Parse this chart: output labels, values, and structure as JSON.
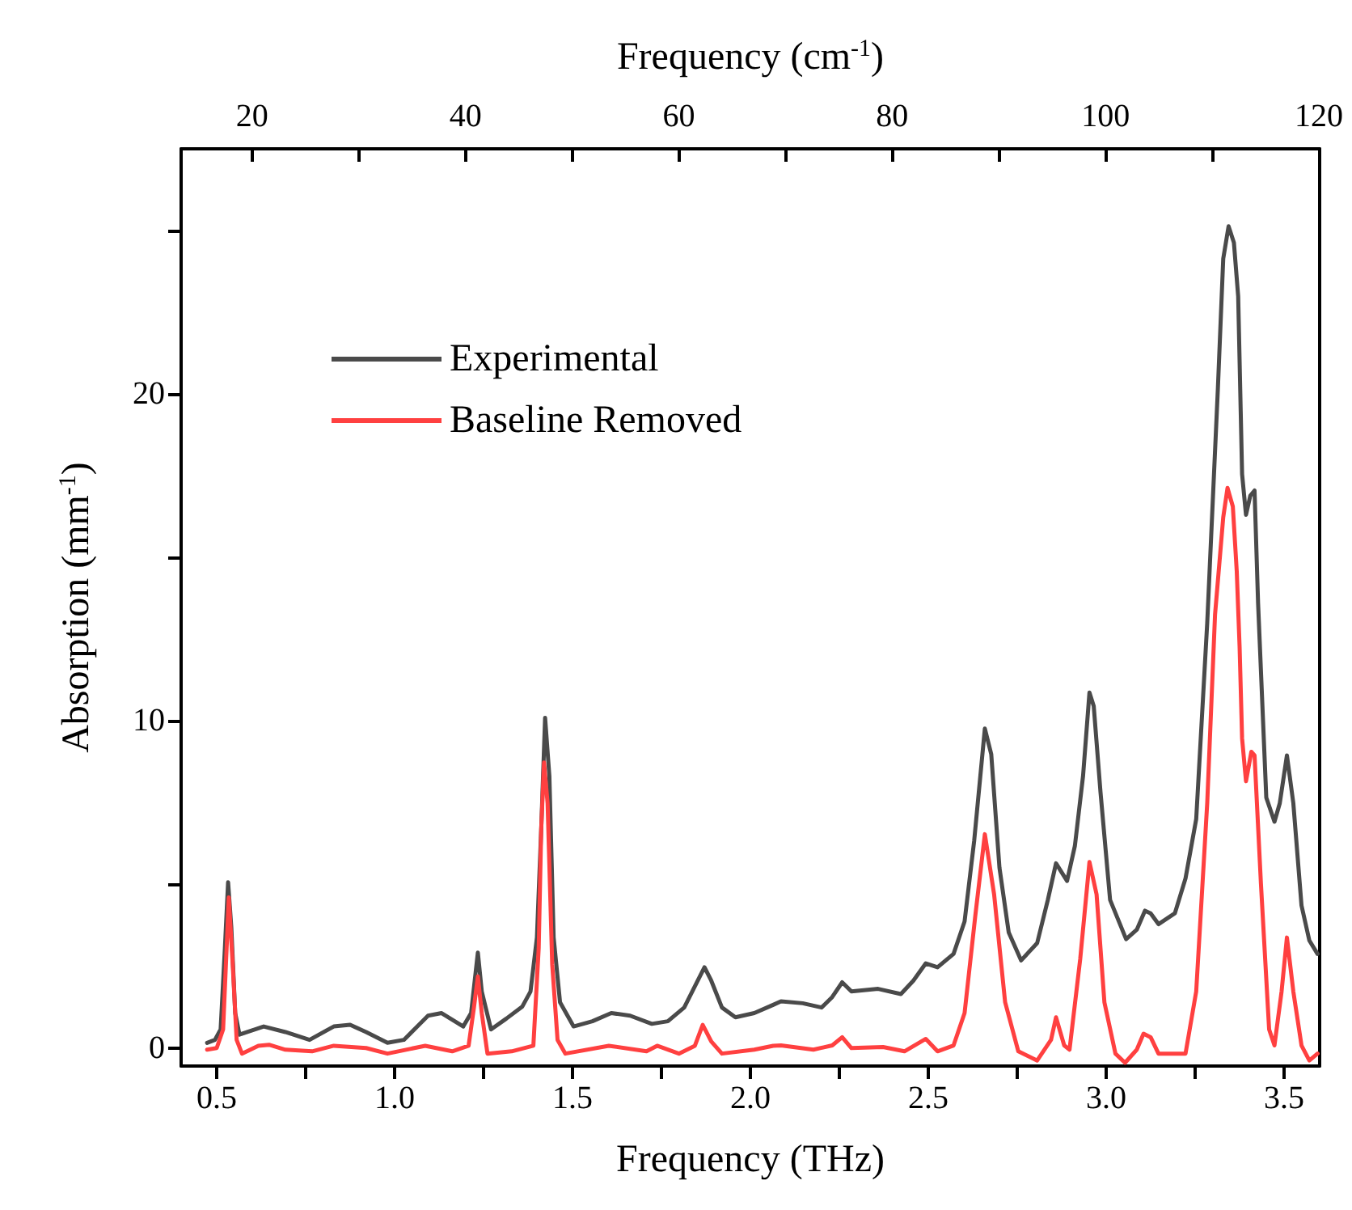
{
  "chart_data": {
    "type": "line",
    "xlabel": "Frequency (THz)",
    "x2label": "Frequency (cm$^{-1}$)",
    "ylabel": "Absorption (mm$^{-1}$)",
    "xlim": [
      0.4,
      3.6
    ],
    "xticks": [
      0.5,
      {
        "value": 0.75,
        "label": null
      },
      {
        "value": 1,
        "label": "1.0"
      },
      {
        "value": 1.25,
        "label": null
      },
      1.5,
      {
        "value": 1.75,
        "label": null
      },
      {
        "value": 2,
        "label": "2.0"
      },
      {
        "value": 2.25,
        "label": null
      },
      2.5,
      {
        "value": 2.75,
        "label": null
      },
      {
        "value": 3,
        "label": "3.0"
      },
      {
        "value": 3.25,
        "label": null
      },
      3.5
    ],
    "x2lim": [
      13.34,
      120.08
    ],
    "x2ticks": [
      20,
      {
        "value": 30,
        "label": null
      },
      40,
      {
        "value": 50,
        "label": null
      },
      60,
      {
        "value": 70,
        "label": null
      },
      80,
      {
        "value": 90,
        "label": null
      },
      100,
      {
        "value": 110,
        "label": null
      },
      120
    ],
    "ylim": [
      -0.55,
      27.5
    ],
    "yticks": [
      0,
      {
        "value": 5,
        "label": null
      },
      10,
      {
        "value": 15,
        "label": null
      },
      20,
      {
        "value": 25,
        "label": null
      }
    ],
    "grid": false,
    "legend": "top left",
    "series": [
      {
        "name": "Experimental",
        "color": "#4a4a4a",
        "x": [
          0.473,
          0.495,
          0.511,
          0.523,
          0.532,
          0.541,
          0.552,
          0.564,
          0.586,
          0.632,
          0.693,
          0.761,
          0.829,
          0.875,
          0.92,
          0.98,
          1.026,
          1.094,
          1.132,
          1.193,
          1.215,
          1.234,
          1.245,
          1.271,
          1.314,
          1.359,
          1.382,
          1.4,
          1.412,
          1.423,
          1.435,
          1.447,
          1.465,
          1.503,
          1.556,
          1.609,
          1.662,
          1.723,
          1.768,
          1.814,
          1.852,
          1.871,
          1.89,
          1.92,
          1.958,
          2.011,
          2.064,
          2.086,
          2.147,
          2.2,
          2.23,
          2.258,
          2.284,
          2.359,
          2.423,
          2.458,
          2.493,
          2.526,
          2.571,
          2.602,
          2.629,
          2.659,
          2.677,
          2.7,
          2.726,
          2.761,
          2.806,
          2.836,
          2.859,
          2.89,
          2.912,
          2.935,
          2.953,
          2.965,
          2.984,
          3.011,
          3.056,
          3.086,
          3.109,
          3.125,
          3.147,
          3.193,
          3.223,
          3.253,
          3.284,
          3.314,
          3.329,
          3.344,
          3.359,
          3.371,
          3.382,
          3.393,
          3.405,
          3.417,
          3.427,
          3.45,
          3.473,
          3.488,
          3.508,
          3.526,
          3.549,
          3.571,
          3.594
        ],
        "values": [
          0.16,
          0.25,
          0.57,
          3.05,
          5.07,
          3.7,
          1.07,
          0.41,
          0.49,
          0.66,
          0.49,
          0.25,
          0.66,
          0.71,
          0.49,
          0.16,
          0.25,
          0.99,
          1.07,
          0.66,
          1.07,
          2.92,
          1.73,
          0.57,
          0.9,
          1.27,
          1.73,
          3.38,
          6.67,
          10.1,
          8.32,
          3.38,
          1.4,
          0.66,
          0.82,
          1.07,
          0.99,
          0.74,
          0.82,
          1.24,
          2.06,
          2.47,
          2.06,
          1.24,
          0.94,
          1.07,
          1.32,
          1.43,
          1.37,
          1.24,
          1.56,
          2.01,
          1.73,
          1.81,
          1.65,
          2.06,
          2.59,
          2.47,
          2.88,
          3.87,
          6.34,
          9.77,
          8.98,
          5.52,
          3.54,
          2.68,
          3.21,
          4.53,
          5.65,
          5.11,
          6.18,
          8.32,
          10.87,
          10.46,
          7.83,
          4.53,
          3.33,
          3.62,
          4.2,
          4.12,
          3.79,
          4.12,
          5.19,
          7.0,
          13.0,
          20.18,
          24.14,
          25.13,
          24.63,
          22.99,
          17.55,
          16.31,
          16.89,
          17.05,
          13.59,
          7.66,
          6.92,
          7.49,
          8.95,
          7.49,
          4.36,
          3.29,
          2.88
        ]
      },
      {
        "name": "Baseline Removed",
        "color": "#ff4040",
        "x": [
          0.473,
          0.5,
          0.518,
          0.534,
          0.545,
          0.556,
          0.571,
          0.617,
          0.647,
          0.693,
          0.768,
          0.829,
          0.92,
          0.98,
          1.086,
          1.162,
          1.208,
          1.223,
          1.234,
          1.245,
          1.261,
          1.329,
          1.39,
          1.405,
          1.412,
          1.42,
          1.43,
          1.443,
          1.458,
          1.48,
          1.602,
          1.708,
          1.738,
          1.799,
          1.844,
          1.866,
          1.89,
          1.92,
          2.011,
          2.064,
          2.086,
          2.177,
          2.23,
          2.258,
          2.284,
          2.373,
          2.433,
          2.493,
          2.526,
          2.571,
          2.602,
          2.632,
          2.659,
          2.685,
          2.716,
          2.753,
          2.806,
          2.845,
          2.859,
          2.882,
          2.897,
          2.927,
          2.953,
          2.973,
          2.995,
          3.026,
          3.053,
          3.086,
          3.105,
          3.125,
          3.147,
          3.223,
          3.253,
          3.284,
          3.306,
          3.329,
          3.341,
          3.356,
          3.367,
          3.375,
          3.382,
          3.393,
          3.408,
          3.417,
          3.435,
          3.458,
          3.473,
          3.493,
          3.508,
          3.526,
          3.549,
          3.571,
          3.594
        ],
        "values": [
          -0.05,
          0.0,
          0.57,
          4.61,
          2.55,
          0.25,
          -0.17,
          0.07,
          0.1,
          -0.05,
          -0.1,
          0.07,
          0.0,
          -0.17,
          0.07,
          -0.1,
          0.07,
          1.24,
          2.19,
          1.07,
          -0.17,
          -0.1,
          0.07,
          3.05,
          6.67,
          8.73,
          7.49,
          2.55,
          0.25,
          -0.17,
          0.07,
          -0.1,
          0.07,
          -0.17,
          0.07,
          0.71,
          0.2,
          -0.17,
          -0.05,
          0.07,
          0.08,
          -0.05,
          0.08,
          0.33,
          0.0,
          0.03,
          -0.1,
          0.28,
          -0.1,
          0.08,
          1.07,
          4.03,
          6.54,
          4.7,
          1.4,
          -0.1,
          -0.38,
          0.25,
          0.94,
          0.08,
          -0.05,
          2.72,
          5.69,
          4.7,
          1.4,
          -0.17,
          -0.45,
          -0.05,
          0.44,
          0.33,
          -0.17,
          -0.17,
          1.73,
          7.49,
          13.26,
          16.23,
          17.13,
          16.56,
          14.58,
          12.27,
          9.47,
          8.16,
          9.06,
          8.95,
          5.02,
          0.57,
          0.08,
          1.73,
          3.38,
          1.73,
          0.08,
          -0.38,
          -0.17
        ]
      }
    ]
  }
}
